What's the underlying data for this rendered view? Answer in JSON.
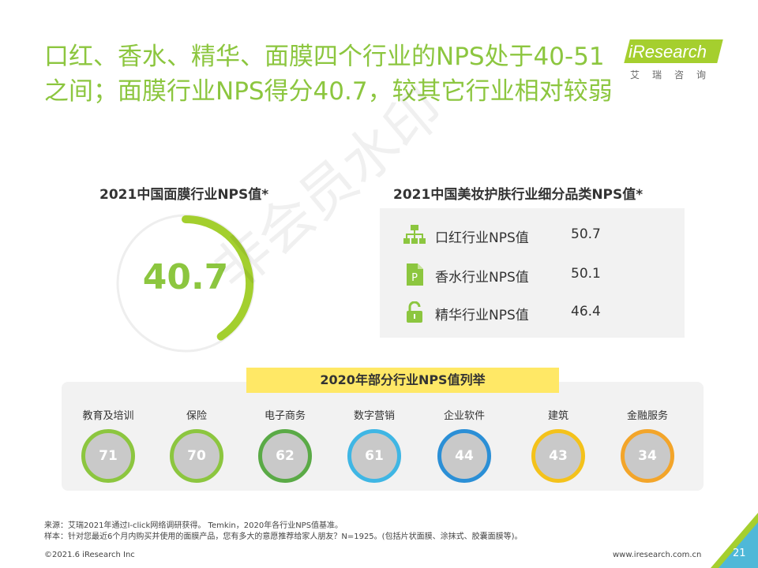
{
  "title": "口红、香水、精华、面膜四个行业的NPS处于40-51之间；面膜行业NPS得分40.7，较其它行业相对较弱",
  "logo": {
    "text": "iResearch",
    "sub": "艾瑞咨询"
  },
  "left_section": {
    "title": "2021中国面膜行业NPS值*",
    "value": "40.7",
    "score": 40.7
  },
  "right_section": {
    "title": "2021中国美妆护肤行业细分品类NPS值*",
    "rows": [
      {
        "icon": "org-chart-icon",
        "label": "口红行业NPS值",
        "value": "50.7"
      },
      {
        "icon": "document-p-icon",
        "label": "香水行业NPS值",
        "value": "50.1"
      },
      {
        "icon": "padlock-icon",
        "label": "精华行业NPS值",
        "value": "46.4"
      }
    ]
  },
  "industries": {
    "title": "2020年部分行业NPS值列举",
    "items": [
      {
        "name": "教育及培训",
        "value": "71",
        "color": "#8cc63f"
      },
      {
        "name": "保险",
        "value": "70",
        "color": "#8cc63f"
      },
      {
        "name": "电子商务",
        "value": "62",
        "color": "#5aaa46"
      },
      {
        "name": "数字营销",
        "value": "61",
        "color": "#3fb6e4"
      },
      {
        "name": "企业软件",
        "value": "44",
        "color": "#2b8fd6"
      },
      {
        "name": "建筑",
        "value": "43",
        "color": "#f4c21b"
      },
      {
        "name": "金融服务",
        "value": "34",
        "color": "#f3a52a"
      }
    ]
  },
  "notes": {
    "source": "来源：艾瑞2021年通过I-click网络调研获得。 Temkin，2020年各行业NPS值基准。",
    "sample": "样本：针对您最近6个月内购买并使用的面膜产品，您有多大的意愿推荐给家人朋友？N=1925。(包括片状面膜、涂抹式、胶囊面膜等)。"
  },
  "footer": {
    "copyright": "©2021.6 iResearch Inc",
    "site": "www.iresearch.com.cn",
    "page": "21"
  },
  "watermark": "非会员水印",
  "colors": {
    "accent": "#8cc63f",
    "highlight": "#ffe866",
    "panel": "#f2f2f2"
  }
}
